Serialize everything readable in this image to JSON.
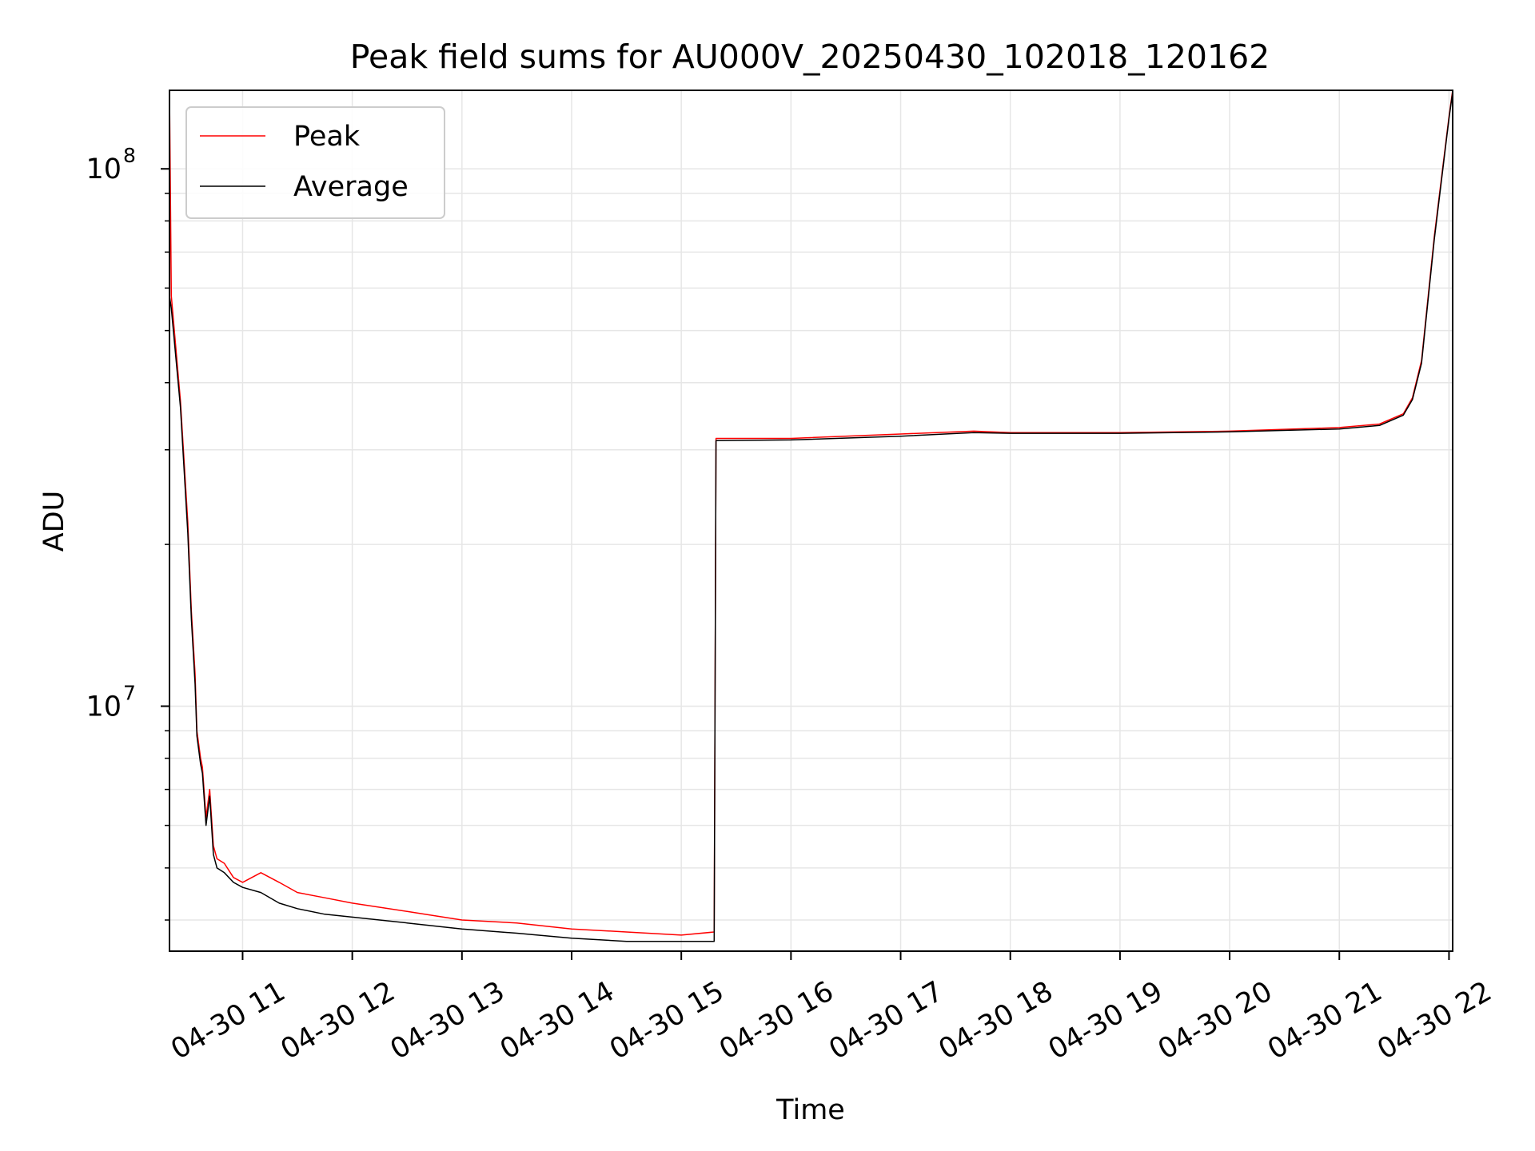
{
  "chart_data": {
    "type": "line",
    "title": "Peak field sums for AU000V_20250430_102018_120162",
    "xlabel": "Time",
    "ylabel": "ADU",
    "y_scale": "log",
    "grid": true,
    "legend_position": "top-left",
    "xlim": [
      "2025-04-30 10:20",
      "2025-04-30 22:02"
    ],
    "ylim": [
      3500000,
      140000000
    ],
    "x_ticks": [
      {
        "t": "2025-04-30 11:00",
        "label": "04-30 11"
      },
      {
        "t": "2025-04-30 12:00",
        "label": "04-30 12"
      },
      {
        "t": "2025-04-30 13:00",
        "label": "04-30 13"
      },
      {
        "t": "2025-04-30 14:00",
        "label": "04-30 14"
      },
      {
        "t": "2025-04-30 15:00",
        "label": "04-30 15"
      },
      {
        "t": "2025-04-30 16:00",
        "label": "04-30 16"
      },
      {
        "t": "2025-04-30 17:00",
        "label": "04-30 17"
      },
      {
        "t": "2025-04-30 18:00",
        "label": "04-30 18"
      },
      {
        "t": "2025-04-30 19:00",
        "label": "04-30 19"
      },
      {
        "t": "2025-04-30 20:00",
        "label": "04-30 20"
      },
      {
        "t": "2025-04-30 21:00",
        "label": "04-30 21"
      },
      {
        "t": "2025-04-30 22:00",
        "label": "04-30 22"
      }
    ],
    "y_ticks": [
      {
        "value": 10000000,
        "base": "10",
        "exp": "7"
      },
      {
        "value": 100000000,
        "base": "10",
        "exp": "8"
      }
    ],
    "series": [
      {
        "name": "Peak",
        "color": "#ff0000",
        "x": [
          "2025-04-30 10:20",
          "2025-04-30 10:21",
          "2025-04-30 10:26",
          "2025-04-30 10:30",
          "2025-04-30 10:32",
          "2025-04-30 10:34",
          "2025-04-30 10:35",
          "2025-04-30 10:37",
          "2025-04-30 10:38",
          "2025-04-30 10:40",
          "2025-04-30 10:42",
          "2025-04-30 10:44",
          "2025-04-30 10:46",
          "2025-04-30 10:50",
          "2025-04-30 10:55",
          "2025-04-30 11:00",
          "2025-04-30 11:10",
          "2025-04-30 11:20",
          "2025-04-30 11:30",
          "2025-04-30 11:45",
          "2025-04-30 12:00",
          "2025-04-30 12:30",
          "2025-04-30 13:00",
          "2025-04-30 13:30",
          "2025-04-30 14:00",
          "2025-04-30 14:30",
          "2025-04-30 15:00",
          "2025-04-30 15:18",
          "2025-04-30 15:19",
          "2025-04-30 16:00",
          "2025-04-30 17:00",
          "2025-04-30 17:40",
          "2025-04-30 18:00",
          "2025-04-30 19:00",
          "2025-04-30 20:00",
          "2025-04-30 21:00",
          "2025-04-30 21:22",
          "2025-04-30 21:35",
          "2025-04-30 21:40",
          "2025-04-30 21:45",
          "2025-04-30 21:52",
          "2025-04-30 22:00",
          "2025-04-30 22:02"
        ],
        "y": [
          140000000,
          58000000,
          37000000,
          22000000,
          15000000,
          11500000,
          9000000,
          8000000,
          7700000,
          6200000,
          7000000,
          5500000,
          5200000,
          5100000,
          4800000,
          4700000,
          4900000,
          4700000,
          4500000,
          4400000,
          4300000,
          4150000,
          4000000,
          3950000,
          3850000,
          3800000,
          3750000,
          3800000,
          31500000,
          31500000,
          32100000,
          32500000,
          32300000,
          32300000,
          32500000,
          33000000,
          33500000,
          35000000,
          37500000,
          44000000,
          75000000,
          125000000,
          140000000
        ]
      },
      {
        "name": "Average",
        "color": "#000000",
        "x": [
          "2025-04-30 10:20",
          "2025-04-30 10:21",
          "2025-04-30 10:26",
          "2025-04-30 10:30",
          "2025-04-30 10:32",
          "2025-04-30 10:34",
          "2025-04-30 10:35",
          "2025-04-30 10:37",
          "2025-04-30 10:38",
          "2025-04-30 10:40",
          "2025-04-30 10:42",
          "2025-04-30 10:44",
          "2025-04-30 10:46",
          "2025-04-30 10:50",
          "2025-04-30 10:55",
          "2025-04-30 11:00",
          "2025-04-30 11:10",
          "2025-04-30 11:20",
          "2025-04-30 11:30",
          "2025-04-30 11:45",
          "2025-04-30 12:00",
          "2025-04-30 12:30",
          "2025-04-30 13:00",
          "2025-04-30 13:30",
          "2025-04-30 14:00",
          "2025-04-30 14:30",
          "2025-04-30 15:00",
          "2025-04-30 15:18",
          "2025-04-30 15:19",
          "2025-04-30 16:00",
          "2025-04-30 17:00",
          "2025-04-30 17:40",
          "2025-04-30 18:00",
          "2025-04-30 19:00",
          "2025-04-30 20:00",
          "2025-04-30 21:00",
          "2025-04-30 21:22",
          "2025-04-30 21:35",
          "2025-04-30 21:40",
          "2025-04-30 21:45",
          "2025-04-30 21:52",
          "2025-04-30 22:00",
          "2025-04-30 22:02"
        ],
        "y": [
          58000000,
          55000000,
          36000000,
          21000000,
          14500000,
          11000000,
          8800000,
          7800000,
          7500000,
          6000000,
          6800000,
          5300000,
          5000000,
          4900000,
          4700000,
          4600000,
          4500000,
          4300000,
          4200000,
          4100000,
          4050000,
          3950000,
          3850000,
          3780000,
          3700000,
          3650000,
          3650000,
          3650000,
          31200000,
          31300000,
          31800000,
          32300000,
          32200000,
          32200000,
          32400000,
          32800000,
          33300000,
          34800000,
          37200000,
          43500000,
          74000000,
          124000000,
          139000000
        ]
      }
    ]
  }
}
